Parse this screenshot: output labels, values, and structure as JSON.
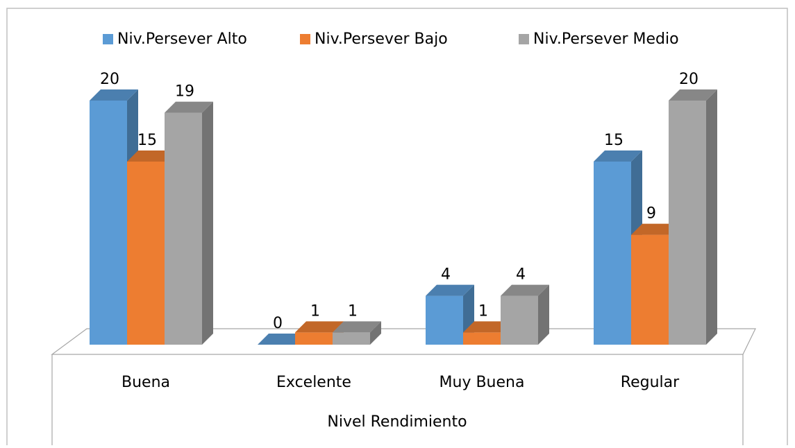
{
  "chart_data": {
    "type": "bar3d",
    "categories": [
      "Buena",
      "Excelente",
      "Muy Buena",
      "Regular"
    ],
    "x_label": "Nivel Rendimiento",
    "series": [
      {
        "name": "Niv.Persever Alto",
        "color": "#5b9bd5",
        "values": [
          20,
          0,
          4,
          15
        ]
      },
      {
        "name": "Niv.Persever Bajo",
        "color": "#ed7d31",
        "values": [
          15,
          1,
          1,
          9
        ]
      },
      {
        "name": "Niv.Persever Medio",
        "color": "#a5a5a5",
        "values": [
          19,
          1,
          4,
          20
        ]
      }
    ],
    "legend": "top"
  }
}
